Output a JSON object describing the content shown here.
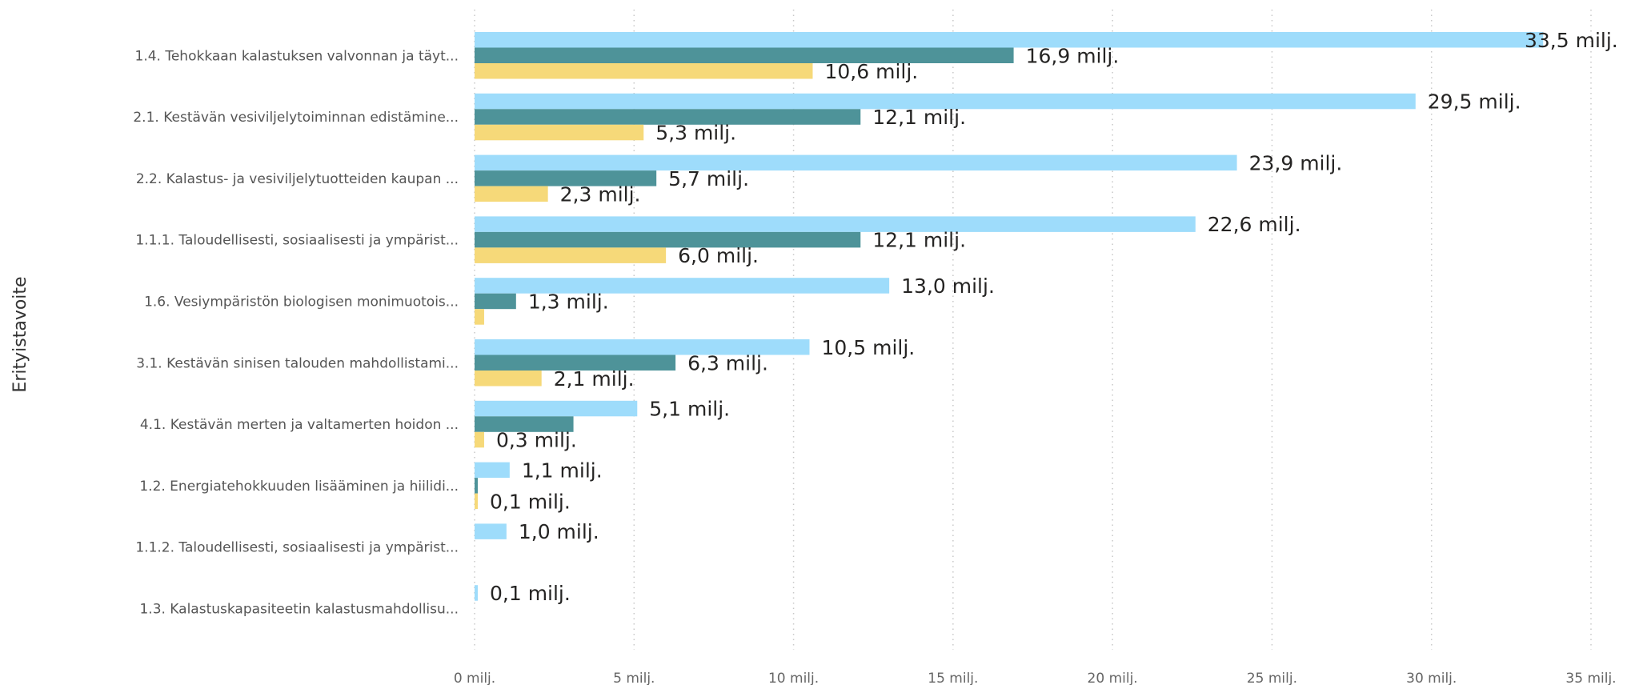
{
  "chart_data": {
    "type": "bar",
    "orientation": "horizontal",
    "ylabel": "Erityistavoite",
    "xlim": [
      0,
      35
    ],
    "xticks": [
      "0 milj.",
      "5 milj.",
      "10 milj.",
      "15 milj.",
      "20 milj.",
      "25 milj.",
      "30 milj.",
      "35 milj."
    ],
    "grid": true,
    "categories": [
      "1.4. Tehokkaan kalastuksen valvonnan ja täyt...",
      "2.1. Kestävän vesiviljelytoiminnan edistämine...",
      "2.2. Kalastus- ja vesiviljelytuotteiden kaupan ...",
      "1.1.1. Taloudellisesti, sosiaalisesti ja ympärist...",
      "1.6. Vesiympäristön biologisen monimuotois...",
      "3.1. Kestävän sinisen talouden mahdollistami...",
      "4.1. Kestävän merten ja valtamerten hoidon ...",
      "1.2. Energiatehokkuuden lisääminen ja hiilidi...",
      "1.1.2. Taloudellisesti, sosiaalisesti ja ympärist...",
      "1.3. Kalastuskapasiteetin kalastusmahdollisu..."
    ],
    "series": [
      {
        "color": "#9EDCFB",
        "values": [
          33.5,
          29.5,
          23.9,
          22.6,
          13.0,
          10.5,
          5.1,
          1.1,
          1.0,
          0.1
        ],
        "labels": [
          "33,5 milj.",
          "29,5 milj.",
          "23,9 milj.",
          "22,6 milj.",
          "13,0 milj.",
          "10,5 milj.",
          "5,1 milj.",
          "1,1 milj.",
          "1,0 milj.",
          "0,1 milj."
        ]
      },
      {
        "color": "#4E9399",
        "values": [
          16.9,
          12.1,
          5.7,
          12.1,
          1.3,
          6.3,
          3.1,
          0.1,
          null,
          null
        ],
        "labels": [
          "16,9 milj.",
          "12,1 milj.",
          "5,7 milj.",
          "12,1 milj.",
          "1,3 milj.",
          "6,3 milj.",
          "",
          "",
          "",
          ""
        ]
      },
      {
        "color": "#F6D979",
        "values": [
          10.6,
          5.3,
          2.3,
          6.0,
          0.3,
          2.1,
          0.3,
          0.1,
          null,
          null
        ],
        "labels": [
          "10,6 milj.",
          "5,3 milj.",
          "2,3 milj.",
          "6,0 milj.",
          "",
          "2,1 milj.",
          "0,3 milj.",
          "0,1 milj.",
          "",
          ""
        ]
      }
    ]
  }
}
